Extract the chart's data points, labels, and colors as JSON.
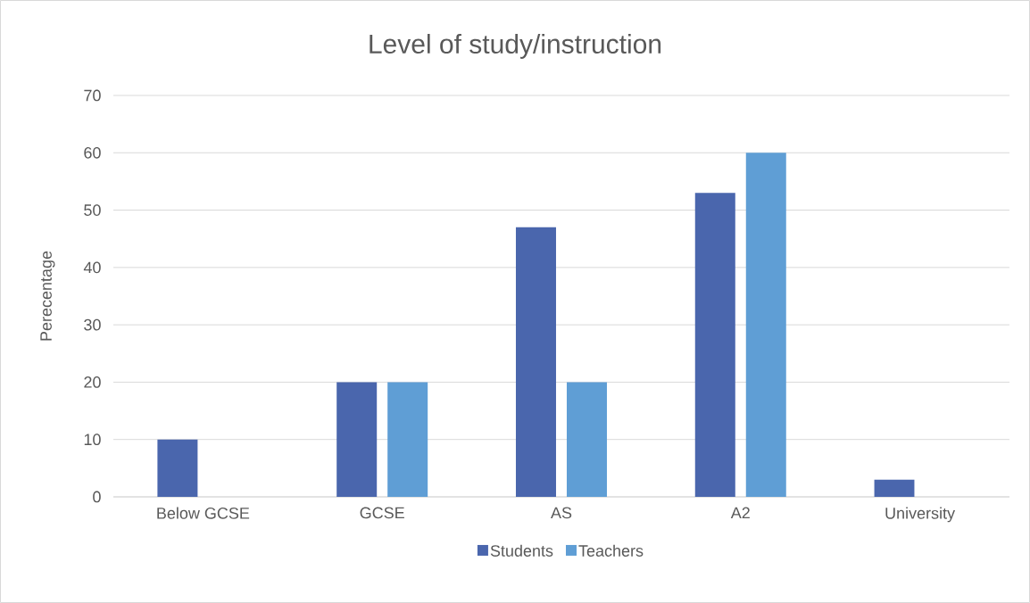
{
  "chart_data": {
    "type": "bar",
    "title": "Level of study/instruction",
    "ylabel": "Perecentage",
    "categories": [
      "Below GCSE",
      "GCSE",
      "AS",
      "A2",
      "University"
    ],
    "series": [
      {
        "name": "Students",
        "color": "#4a66ad",
        "values": [
          10,
          20,
          47,
          53,
          3
        ]
      },
      {
        "name": "Teachers",
        "color": "#5f9ed5",
        "values": [
          0,
          20,
          20,
          60,
          0
        ]
      }
    ],
    "ylim": [
      0,
      70
    ],
    "yticks": [
      0,
      10,
      20,
      30,
      40,
      50,
      60,
      70
    ],
    "grid": "y",
    "legend": "bottom"
  }
}
